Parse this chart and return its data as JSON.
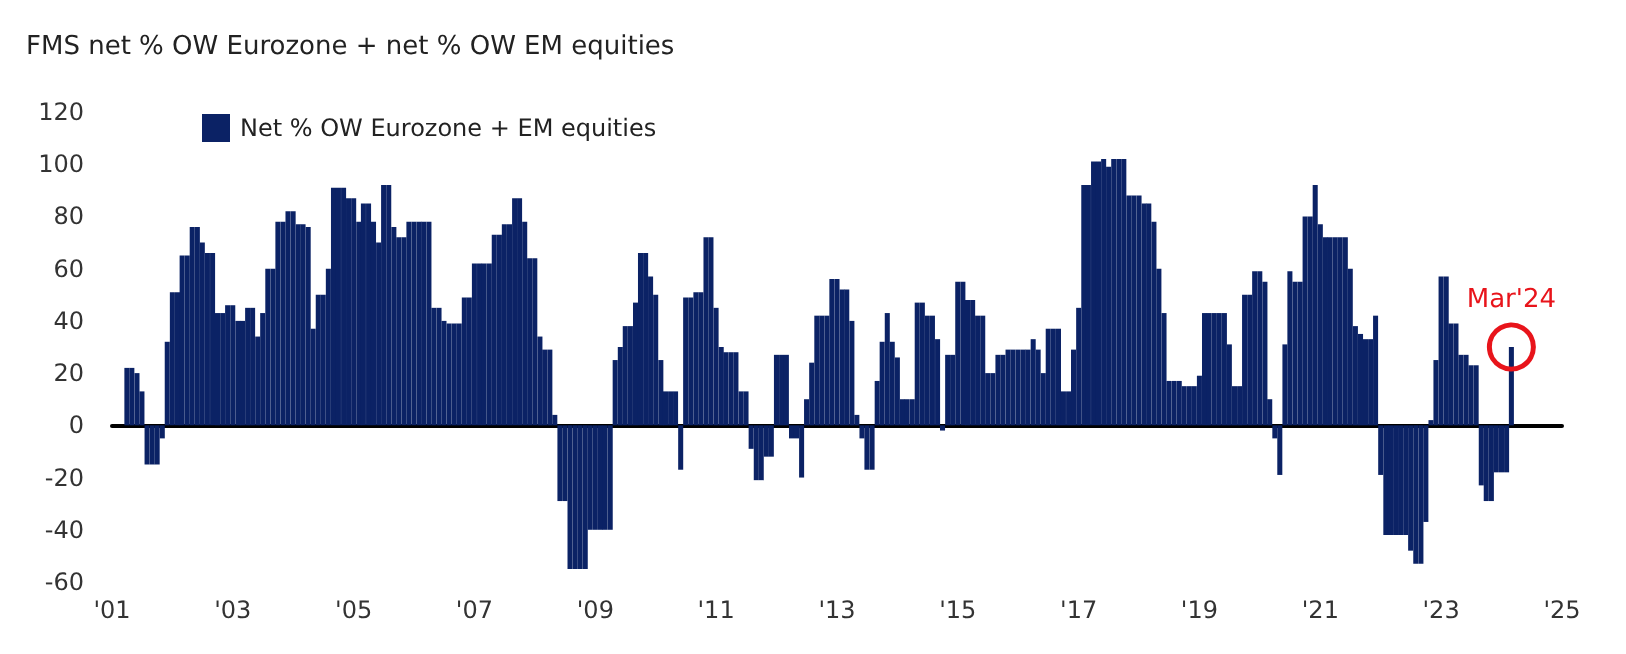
{
  "chart_data": {
    "type": "bar",
    "title": "FMS net % OW Eurozone + net % OW EM equities",
    "x": [
      "2001-04",
      "2001-05",
      "2001-06",
      "2001-07",
      "2001-08",
      "2001-09",
      "2001-10",
      "2001-11",
      "2001-12",
      "2002-01",
      "2002-02",
      "2002-03",
      "2002-04",
      "2002-05",
      "2002-06",
      "2002-07",
      "2002-08",
      "2002-09",
      "2002-10",
      "2002-11",
      "2002-12",
      "2003-01",
      "2003-02",
      "2003-03",
      "2003-04",
      "2003-05",
      "2003-06",
      "2003-07",
      "2003-08",
      "2003-09",
      "2003-10",
      "2003-11",
      "2003-12",
      "2004-01",
      "2004-02",
      "2004-03",
      "2004-04",
      "2004-05",
      "2004-06",
      "2004-07",
      "2004-08",
      "2004-09",
      "2004-10",
      "2004-11",
      "2004-12",
      "2005-01",
      "2005-02",
      "2005-03",
      "2005-04",
      "2005-05",
      "2005-06",
      "2005-07",
      "2005-08",
      "2005-09",
      "2005-10",
      "2005-11",
      "2005-12",
      "2006-01",
      "2006-02",
      "2006-03",
      "2006-04",
      "2006-05",
      "2006-06",
      "2006-07",
      "2006-08",
      "2006-09",
      "2006-10",
      "2006-11",
      "2006-12",
      "2007-01",
      "2007-02",
      "2007-03",
      "2007-04",
      "2007-05",
      "2007-06",
      "2007-07",
      "2007-08",
      "2007-09",
      "2007-10",
      "2007-11",
      "2007-12",
      "2008-01",
      "2008-02",
      "2008-03",
      "2008-04",
      "2008-05",
      "2008-06",
      "2008-07",
      "2008-08",
      "2008-09",
      "2008-10",
      "2008-11",
      "2008-12",
      "2009-01",
      "2009-02",
      "2009-03",
      "2009-04",
      "2009-05",
      "2009-06",
      "2009-07",
      "2009-08",
      "2009-09",
      "2009-10",
      "2009-11",
      "2009-12",
      "2010-01",
      "2010-02",
      "2010-03",
      "2010-04",
      "2010-05",
      "2010-06",
      "2010-07",
      "2010-08",
      "2010-09",
      "2010-10",
      "2010-11",
      "2010-12",
      "2011-01",
      "2011-02",
      "2011-03",
      "2011-04",
      "2011-05",
      "2011-06",
      "2011-07",
      "2011-08",
      "2011-09",
      "2011-10",
      "2011-11",
      "2011-12",
      "2012-01",
      "2012-02",
      "2012-03",
      "2012-04",
      "2012-05",
      "2012-06",
      "2012-07",
      "2012-08",
      "2012-09",
      "2012-10",
      "2012-11",
      "2012-12",
      "2013-01",
      "2013-02",
      "2013-03",
      "2013-04",
      "2013-05",
      "2013-06",
      "2013-07",
      "2013-08",
      "2013-09",
      "2013-10",
      "2013-11",
      "2013-12",
      "2014-01",
      "2014-02",
      "2014-03",
      "2014-04",
      "2014-05",
      "2014-06",
      "2014-07",
      "2014-08",
      "2014-09",
      "2014-10",
      "2014-11",
      "2014-12",
      "2015-01",
      "2015-02",
      "2015-03",
      "2015-04",
      "2015-05",
      "2015-06",
      "2015-07",
      "2015-08",
      "2015-09",
      "2015-10",
      "2015-11",
      "2015-12",
      "2016-01",
      "2016-02",
      "2016-03",
      "2016-04",
      "2016-05",
      "2016-06",
      "2016-07",
      "2016-08",
      "2016-09",
      "2016-10",
      "2016-11",
      "2016-12",
      "2017-01",
      "2017-02",
      "2017-03",
      "2017-04",
      "2017-05",
      "2017-06",
      "2017-07",
      "2017-08",
      "2017-09",
      "2017-10",
      "2017-11",
      "2017-12",
      "2018-01",
      "2018-02",
      "2018-03",
      "2018-04",
      "2018-05",
      "2018-06",
      "2018-07",
      "2018-08",
      "2018-09",
      "2018-10",
      "2018-11",
      "2018-12",
      "2019-01",
      "2019-02",
      "2019-03",
      "2019-04",
      "2019-05",
      "2019-06",
      "2019-07",
      "2019-08",
      "2019-09",
      "2019-10",
      "2019-11",
      "2019-12",
      "2020-01",
      "2020-02",
      "2020-03",
      "2020-04",
      "2020-05",
      "2020-06",
      "2020-07",
      "2020-08",
      "2020-09",
      "2020-10",
      "2020-11",
      "2020-12",
      "2021-01",
      "2021-02",
      "2021-03",
      "2021-04",
      "2021-05",
      "2021-06",
      "2021-07",
      "2021-08",
      "2021-09",
      "2021-10",
      "2021-11",
      "2021-12",
      "2022-01",
      "2022-02",
      "2022-03",
      "2022-04",
      "2022-05",
      "2022-06",
      "2022-07",
      "2022-08",
      "2022-09",
      "2022-10",
      "2022-11",
      "2022-12",
      "2023-01",
      "2023-02",
      "2023-03",
      "2023-04",
      "2023-05",
      "2023-06",
      "2023-07",
      "2023-08",
      "2023-09",
      "2023-10",
      "2023-11",
      "2023-12",
      "2024-01",
      "2024-02",
      "2024-03"
    ],
    "series": [
      {
        "name": "Net % OW Eurozone + EM equities",
        "color": "#0b2265",
        "values": [
          22,
          22,
          20,
          13,
          -15,
          -15,
          -15,
          -5,
          32,
          51,
          51,
          65,
          65,
          76,
          76,
          70,
          66,
          66,
          43,
          43,
          46,
          46,
          40,
          40,
          45,
          45,
          34,
          43,
          60,
          60,
          78,
          78,
          82,
          82,
          77,
          77,
          76,
          37,
          50,
          50,
          60,
          91,
          91,
          91,
          87,
          87,
          78,
          85,
          85,
          78,
          70,
          92,
          92,
          76,
          72,
          72,
          78,
          78,
          78,
          78,
          78,
          45,
          45,
          40,
          39,
          39,
          39,
          49,
          49,
          62,
          62,
          62,
          62,
          73,
          73,
          77,
          77,
          87,
          87,
          78,
          64,
          64,
          34,
          29,
          29,
          4,
          -29,
          -29,
          -55,
          -55,
          -55,
          -55,
          -40,
          -40,
          -40,
          -40,
          -40,
          25,
          30,
          38,
          38,
          47,
          66,
          66,
          57,
          50,
          25,
          13,
          13,
          13,
          -17,
          49,
          49,
          51,
          51,
          72,
          72,
          45,
          30,
          28,
          28,
          28,
          13,
          13,
          -9,
          -21,
          -21,
          -12,
          -12,
          27,
          27,
          27,
          -5,
          -5,
          -20,
          10,
          24,
          42,
          42,
          42,
          56,
          56,
          52,
          52,
          40,
          4,
          -5,
          -17,
          -17,
          17,
          32,
          43,
          32,
          26,
          10,
          10,
          10,
          47,
          47,
          42,
          42,
          33,
          -2,
          27,
          27,
          55,
          55,
          48,
          48,
          42,
          42,
          20,
          20,
          27,
          27,
          29,
          29,
          29,
          29,
          29,
          33,
          29,
          20,
          37,
          37,
          37,
          13,
          13,
          29,
          45,
          92,
          92,
          101,
          101,
          102,
          99,
          102,
          102,
          102,
          88,
          88,
          88,
          85,
          85,
          78,
          60,
          43,
          17,
          17,
          17,
          15,
          15,
          15,
          19,
          43,
          43,
          43,
          43,
          43,
          31,
          15,
          15,
          50,
          50,
          59,
          59,
          55,
          10,
          -5,
          -19,
          31,
          59,
          55,
          55,
          80,
          80,
          92,
          77,
          72,
          72,
          72,
          72,
          72,
          60,
          38,
          35,
          33,
          33,
          42,
          -19,
          -42,
          -42,
          -42,
          -42,
          -42,
          -48,
          -53,
          -53,
          -37,
          2,
          25,
          57,
          57,
          39,
          39,
          27,
          27,
          23,
          23,
          -23,
          -29,
          -29,
          -18,
          -18,
          -18,
          30
        ]
      }
    ],
    "xlim": [
      "2001",
      "2025"
    ],
    "xticks": [
      {
        "value": "2001",
        "label": "'01"
      },
      {
        "value": "2003",
        "label": "'03"
      },
      {
        "value": "2005",
        "label": "'05"
      },
      {
        "value": "2007",
        "label": "'07"
      },
      {
        "value": "2009",
        "label": "'09"
      },
      {
        "value": "2011",
        "label": "'11"
      },
      {
        "value": "2013",
        "label": "'13"
      },
      {
        "value": "2015",
        "label": "'15"
      },
      {
        "value": "2017",
        "label": "'17"
      },
      {
        "value": "2019",
        "label": "'19"
      },
      {
        "value": "2021",
        "label": "'21"
      },
      {
        "value": "2023",
        "label": "'23"
      },
      {
        "value": "2025",
        "label": "'25"
      }
    ],
    "ylim": [
      -60,
      120
    ],
    "yticks": [
      -60,
      -40,
      -20,
      0,
      20,
      40,
      60,
      80,
      100,
      120
    ],
    "legend": "top left",
    "annotations": [
      {
        "text": "Mar'24",
        "x": "2024-03",
        "y": 30
      }
    ]
  }
}
